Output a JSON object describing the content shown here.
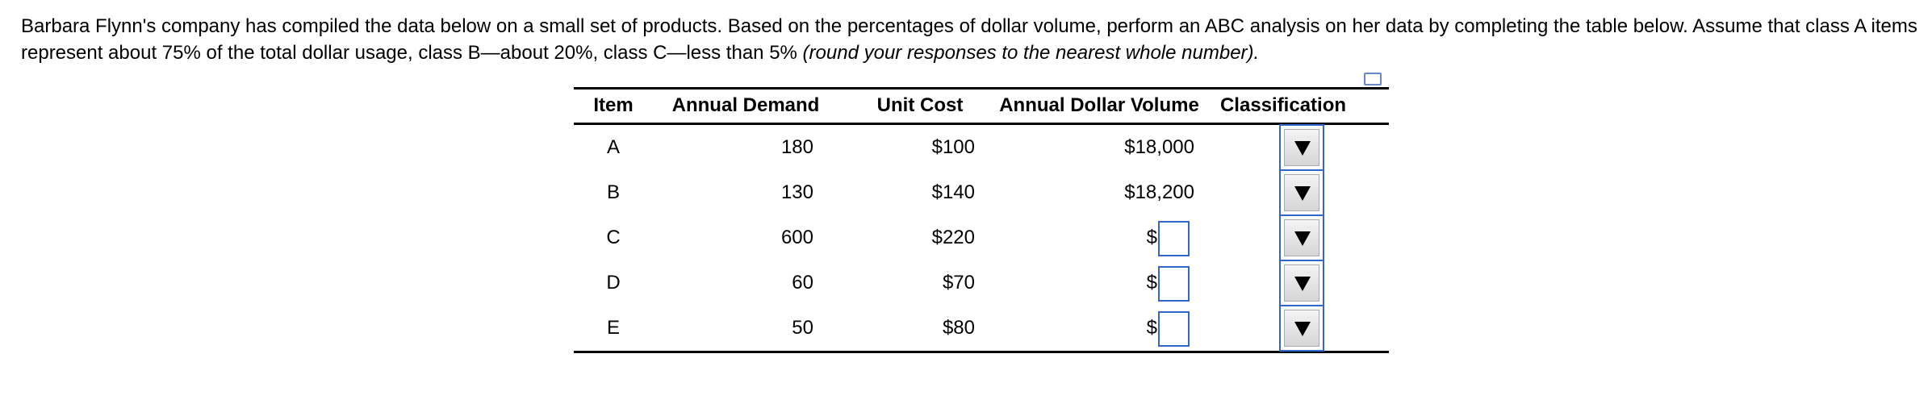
{
  "intro": {
    "text": "Barbara Flynn's company has compiled the data below on a small set of products. Based on the percentages of dollar volume, perform an ABC analysis on her data by completing the table below. Assume that class A items represent about 75% of the total dollar usage, class B—about 20%, class C—less than 5%",
    "italic": "(round your responses to the nearest whole number)."
  },
  "table": {
    "headers": [
      "Item",
      "Annual Demand",
      "Unit Cost",
      "Annual Dollar Volume",
      "Classification"
    ],
    "rows": [
      [
        "A",
        "180",
        "$100",
        "$18,000"
      ],
      [
        "B",
        "130",
        "$140",
        "$18,200"
      ],
      [
        "C",
        "600",
        "$220",
        "$"
      ],
      [
        "D",
        "60",
        "$70",
        "$"
      ],
      [
        "E",
        "50",
        "$80",
        "$"
      ]
    ]
  }
}
